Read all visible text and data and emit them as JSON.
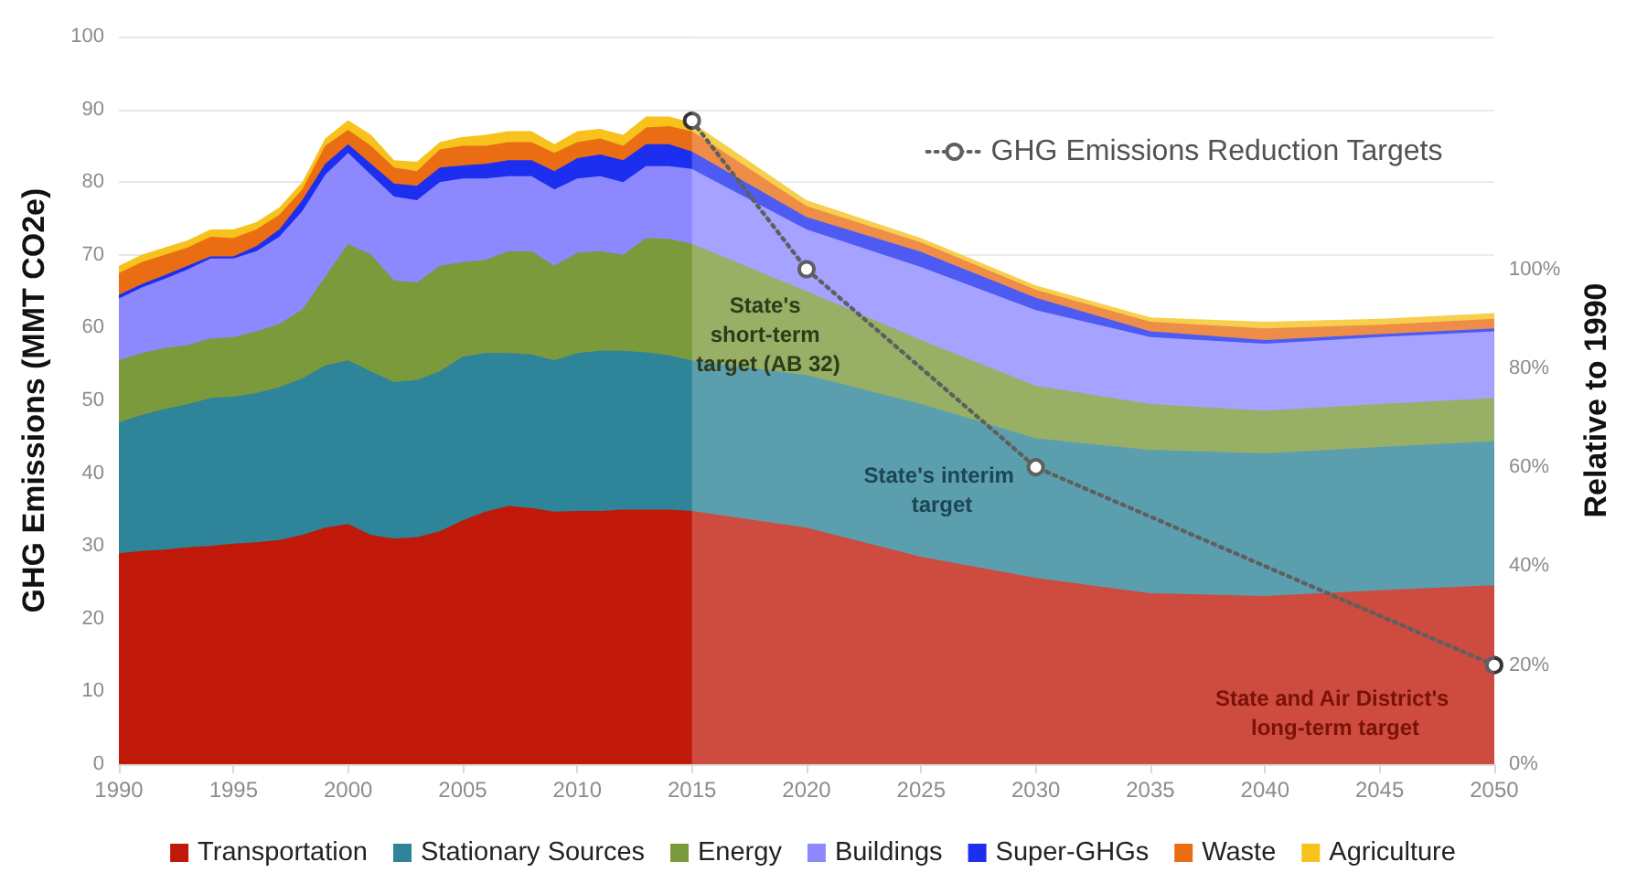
{
  "chart_data": {
    "type": "area",
    "stacked": true,
    "ylabel": "GHG Emissions (MMT CO2e)",
    "y2label": "Relative to 1990",
    "x": [
      1990,
      1991,
      1992,
      1993,
      1994,
      1995,
      1996,
      1997,
      1998,
      1999,
      2000,
      2001,
      2002,
      2003,
      2004,
      2005,
      2006,
      2007,
      2008,
      2009,
      2010,
      2011,
      2012,
      2013,
      2014,
      2015,
      2020,
      2025,
      2030,
      2035,
      2040,
      2045,
      2050
    ],
    "xlim": [
      1990,
      2050
    ],
    "xticks": [
      1990,
      1995,
      2000,
      2005,
      2010,
      2015,
      2020,
      2025,
      2030,
      2035,
      2040,
      2045,
      2050
    ],
    "ylim": [
      0,
      100
    ],
    "yticks": [
      0,
      10,
      20,
      30,
      40,
      50,
      60,
      70,
      80,
      90,
      100
    ],
    "y2lim": [
      0,
      147
    ],
    "y2ticks": [
      {
        "value": 0,
        "label": "0%"
      },
      {
        "value": 20,
        "label": "20%"
      },
      {
        "value": 40,
        "label": "40%"
      },
      {
        "value": 60,
        "label": "60%"
      },
      {
        "value": 80,
        "label": "80%"
      },
      {
        "value": 100,
        "label": "100%"
      }
    ],
    "series": [
      {
        "name": "Transportation",
        "color": "#c0190a",
        "values": [
          29,
          29.3,
          29.5,
          29.8,
          30,
          30.3,
          30.5,
          30.8,
          31.5,
          32.5,
          33,
          31.5,
          31,
          31.2,
          32,
          33.5,
          34.7,
          35.5,
          35.2,
          34.7,
          34.8,
          34.8,
          35,
          35,
          35,
          34.8,
          32.5,
          28.5,
          25.6,
          23.5,
          23.1,
          23.9,
          24.6
        ]
      },
      {
        "name": "Stationary Sources",
        "color": "#2e8499",
        "values": [
          18,
          18.7,
          19.3,
          19.7,
          20.3,
          20.2,
          20.5,
          21,
          21.5,
          22.3,
          22.5,
          22.5,
          21.5,
          21.6,
          22,
          22.5,
          21.8,
          21,
          21.1,
          20.8,
          21.7,
          22,
          21.8,
          21.6,
          21.2,
          20.7,
          21,
          21,
          19.2,
          19.7,
          19.6,
          19.7,
          19.8
        ]
      },
      {
        "name": "Energy",
        "color": "#7a9a3c",
        "values": [
          8.5,
          8.5,
          8.4,
          8.1,
          8.2,
          8.2,
          8.5,
          8.7,
          9.5,
          12.2,
          16,
          16,
          14,
          13.4,
          14.5,
          13,
          12.8,
          14,
          14.2,
          13,
          13.8,
          13.7,
          13.2,
          15.7,
          16,
          16,
          11.5,
          8.8,
          7.2,
          6.3,
          5.9,
          5.9,
          5.9
        ]
      },
      {
        "name": "Buildings",
        "color": "#8e88ff",
        "values": [
          8.5,
          9,
          9.5,
          10.4,
          11,
          10.8,
          11,
          12,
          13.5,
          14,
          12.5,
          11,
          11.5,
          11.3,
          11.5,
          11.5,
          11.2,
          10.3,
          10.3,
          10.5,
          10.2,
          10.3,
          10,
          9.9,
          10,
          10.3,
          8.5,
          10,
          10.4,
          9.2,
          9.2,
          9.2,
          9.2
        ]
      },
      {
        "name": "Super-GHGs",
        "color": "#1c2ef0",
        "values": [
          0.5,
          0.5,
          0.5,
          0.5,
          0.3,
          0.3,
          0.7,
          1,
          1.5,
          1.5,
          1.2,
          1.5,
          1.8,
          2,
          2,
          1.8,
          2,
          2.2,
          2.2,
          2.5,
          2.8,
          3,
          3,
          3,
          3,
          2.4,
          1.7,
          2.1,
          1.7,
          0.8,
          0.5,
          0.4,
          0.4
        ]
      },
      {
        "name": "Waste",
        "color": "#ea6d14",
        "values": [
          3,
          3,
          2.8,
          2.5,
          2.7,
          2.5,
          2.3,
          2,
          1.5,
          2.5,
          2,
          2.5,
          2.2,
          2,
          2.5,
          2.7,
          2.5,
          2.5,
          2.5,
          2.5,
          2.2,
          2.2,
          2,
          2.3,
          2.5,
          2.8,
          1.5,
          1.3,
          1.1,
          1.3,
          1.6,
          1.3,
          1.3
        ]
      },
      {
        "name": "Agriculture",
        "color": "#f7c21c",
        "values": [
          1,
          1,
          1,
          1,
          1,
          1.2,
          1,
          1,
          1,
          1,
          1.3,
          1.5,
          1,
          1.3,
          1,
          1.2,
          1.5,
          1.5,
          1.5,
          1.2,
          1.5,
          1.3,
          1.5,
          1.5,
          1.3,
          1.2,
          0.8,
          0.6,
          0.6,
          0.6,
          0.9,
          0.8,
          0.8
        ]
      },
      {
        "name": "GHG Emissions Reduction Targets",
        "type": "line",
        "axis": "y2",
        "color": "#333333",
        "marker": "circle",
        "line_style": "dotted",
        "x": [
          2015,
          2020,
          2030,
          2050
        ],
        "values": [
          130,
          100,
          60,
          20
        ]
      }
    ],
    "bands": [
      {
        "axis": "x",
        "from": 2015,
        "to": 2050,
        "color": "#ffffff"
      }
    ],
    "annotations": [
      "State's short-term target (AB 32)",
      "State's interim target",
      "State and Air District's long-term target"
    ],
    "grid": "y",
    "legend": "bottom"
  }
}
